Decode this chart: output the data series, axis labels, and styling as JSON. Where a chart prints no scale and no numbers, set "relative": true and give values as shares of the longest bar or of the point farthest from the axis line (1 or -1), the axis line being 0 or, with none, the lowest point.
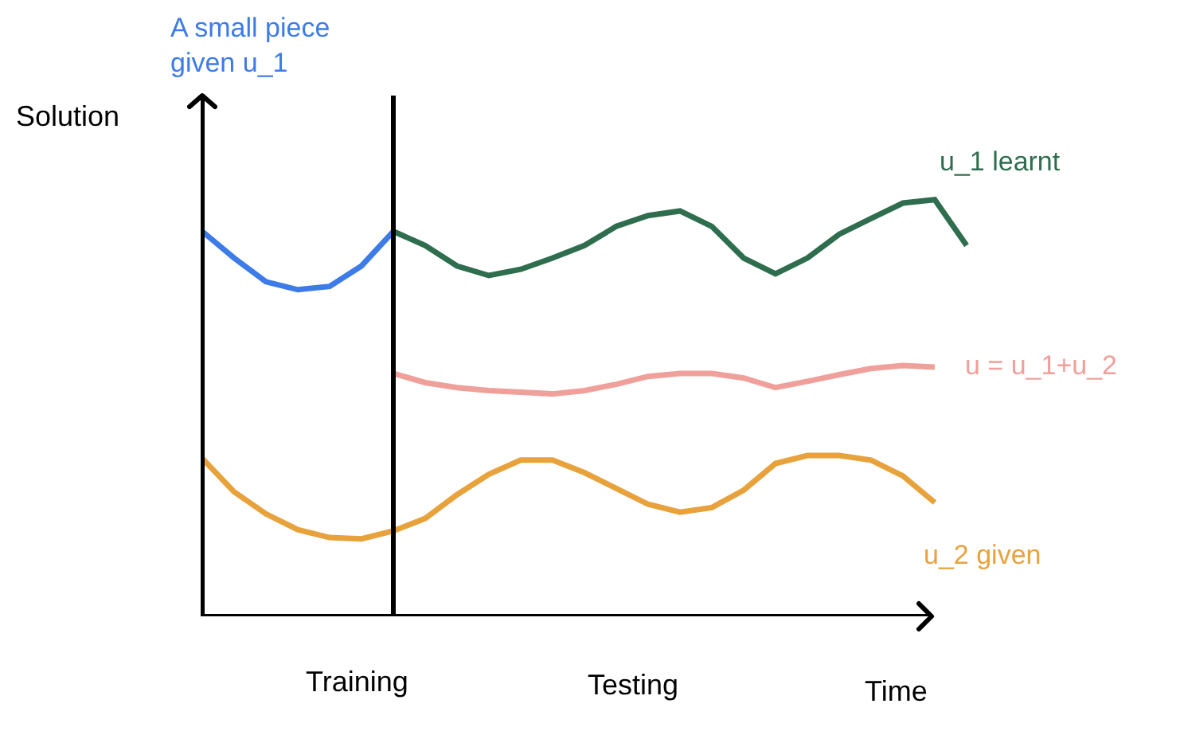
{
  "chart_data": {
    "type": "line",
    "relative": true,
    "ylabel": "Solution",
    "xlabel": "Time",
    "legend": false,
    "grid": false,
    "marker": "none",
    "line_style": "solid",
    "categories": [
      null,
      null,
      null,
      null,
      null,
      null,
      null,
      null,
      null,
      null,
      null,
      null,
      null,
      null,
      null,
      null,
      null,
      null,
      null,
      null,
      null,
      null,
      null,
      null,
      null
    ],
    "series": [
      {
        "name": "A small piece given u_1",
        "color": "#3d7be8",
        "values": [
          0.924,
          0.86,
          0.803,
          0.784,
          0.792,
          0.841,
          0.924,
          null,
          null,
          null,
          null,
          null,
          null,
          null,
          null,
          null,
          null,
          null,
          null,
          null,
          null,
          null,
          null,
          null,
          null
        ]
      },
      {
        "name": "u_1 learnt",
        "color": "#2e6e4e",
        "values": [
          null,
          null,
          null,
          null,
          null,
          null,
          0.924,
          0.89,
          0.841,
          0.818,
          0.833,
          0.86,
          0.89,
          0.936,
          0.962,
          0.973,
          0.936,
          0.86,
          0.822,
          0.86,
          0.917,
          0.955,
          0.992,
          1.0,
          0.89
        ]
      },
      {
        "name": "u = u_1+u_2",
        "color": "#f0a09a",
        "values": [
          null,
          null,
          null,
          null,
          null,
          null,
          0.583,
          0.561,
          0.549,
          0.542,
          0.538,
          0.534,
          0.542,
          0.557,
          0.576,
          0.583,
          0.583,
          0.572,
          0.549,
          0.564,
          0.58,
          0.595,
          0.602,
          0.598,
          null
        ]
      },
      {
        "name": "u_2 given",
        "color": "#e8a23c",
        "values": [
          0.379,
          0.299,
          0.246,
          0.208,
          0.189,
          0.186,
          0.205,
          0.235,
          0.292,
          0.341,
          0.375,
          0.375,
          0.345,
          0.307,
          0.269,
          0.25,
          0.261,
          0.303,
          0.367,
          0.386,
          0.386,
          0.375,
          0.337,
          0.273,
          null
        ]
      }
    ],
    "annotations": [
      "Training",
      "Testing"
    ]
  }
}
